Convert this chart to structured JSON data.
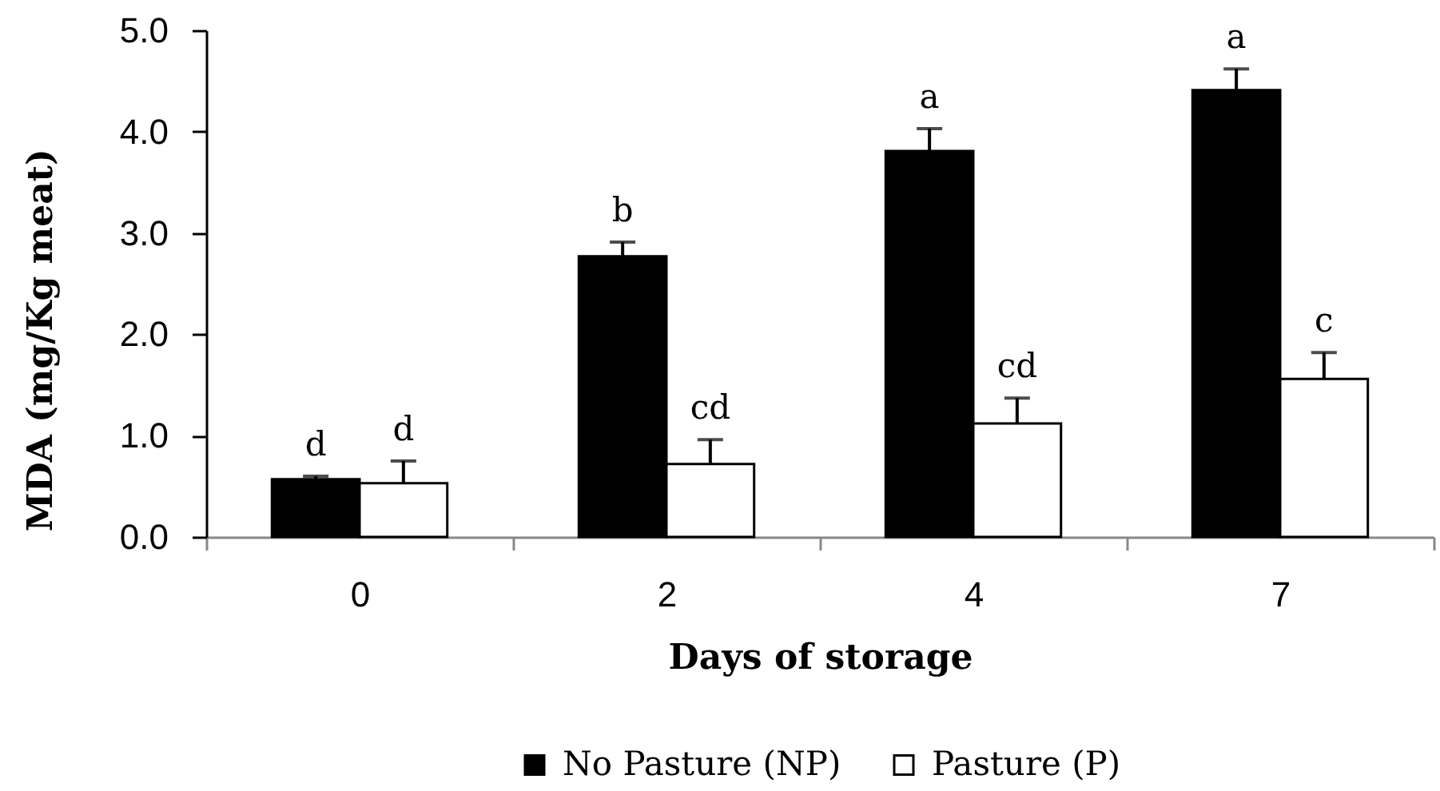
{
  "chart_data": {
    "type": "bar",
    "xlabel": "Days of storage",
    "ylabel": "MDA (mg/Kg meat)",
    "categories": [
      "0",
      "2",
      "4",
      "7"
    ],
    "series": [
      {
        "name": "No Pasture (NP)",
        "color": "#000000",
        "values": [
          0.57,
          2.77,
          3.81,
          4.41
        ],
        "errors": [
          [
            0.57,
            0.6
          ],
          [
            2.77,
            2.91
          ],
          [
            3.81,
            4.03
          ],
          [
            4.41,
            4.62
          ]
        ],
        "value_labels": [
          "d",
          "b",
          "a",
          "a"
        ]
      },
      {
        "name": "Pasture (P)",
        "color": "#ffffff",
        "values": [
          0.53,
          0.72,
          1.12,
          1.56
        ],
        "errors": [
          [
            0.53,
            0.75
          ],
          [
            0.72,
            0.96
          ],
          [
            1.12,
            1.37
          ],
          [
            1.56,
            1.82
          ]
        ],
        "value_labels": [
          "d",
          "cd",
          "cd",
          "c"
        ]
      }
    ],
    "ylim": [
      0,
      5
    ],
    "yticks": [
      {
        "value": 0,
        "label": "0.0"
      },
      {
        "value": 1,
        "label": "1.0"
      },
      {
        "value": 2,
        "label": "2.0"
      },
      {
        "value": 3,
        "label": "3.0"
      },
      {
        "value": 4,
        "label": "4.0"
      },
      {
        "value": 5,
        "label": "5.0"
      }
    ],
    "grid": false,
    "legend": "bottom"
  }
}
